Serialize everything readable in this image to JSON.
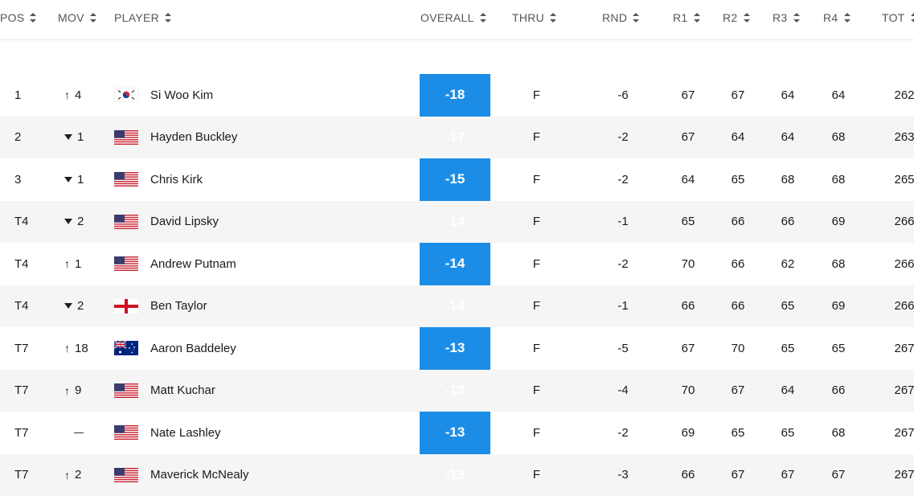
{
  "header": {
    "pos": "POS",
    "mov": "MOV",
    "player": "PLAYER",
    "overall": "OVERALL",
    "thru": "THRU",
    "rnd": "RND",
    "r1": "R1",
    "r2": "R2",
    "r3": "R3",
    "r4": "R4",
    "tot": "TOT"
  },
  "colors": {
    "overall_bg": "#1b8de6",
    "alt_row_bg": "#f5f5f5"
  },
  "rows": [
    {
      "pos": "1",
      "mov_dir": "up",
      "mov": "4",
      "flag": "korea-flag-icon",
      "player": "Si Woo Kim",
      "overall": "-18",
      "thru": "F",
      "rnd": "-6",
      "r1": "67",
      "r2": "67",
      "r3": "64",
      "r4": "64",
      "tot": "262"
    },
    {
      "pos": "2",
      "mov_dir": "down",
      "mov": "1",
      "flag": "usa-flag-icon",
      "player": "Hayden Buckley",
      "overall": "-17",
      "thru": "F",
      "rnd": "-2",
      "r1": "67",
      "r2": "64",
      "r3": "64",
      "r4": "68",
      "tot": "263"
    },
    {
      "pos": "3",
      "mov_dir": "down",
      "mov": "1",
      "flag": "usa-flag-icon",
      "player": "Chris Kirk",
      "overall": "-15",
      "thru": "F",
      "rnd": "-2",
      "r1": "64",
      "r2": "65",
      "r3": "68",
      "r4": "68",
      "tot": "265"
    },
    {
      "pos": "T4",
      "mov_dir": "down",
      "mov": "2",
      "flag": "usa-flag-icon",
      "player": "David Lipsky",
      "overall": "-14",
      "thru": "F",
      "rnd": "-1",
      "r1": "65",
      "r2": "66",
      "r3": "66",
      "r4": "69",
      "tot": "266"
    },
    {
      "pos": "T4",
      "mov_dir": "up",
      "mov": "1",
      "flag": "usa-flag-icon",
      "player": "Andrew Putnam",
      "overall": "-14",
      "thru": "F",
      "rnd": "-2",
      "r1": "70",
      "r2": "66",
      "r3": "62",
      "r4": "68",
      "tot": "266"
    },
    {
      "pos": "T4",
      "mov_dir": "down",
      "mov": "2",
      "flag": "england-flag-icon",
      "player": "Ben Taylor",
      "overall": "-14",
      "thru": "F",
      "rnd": "-1",
      "r1": "66",
      "r2": "66",
      "r3": "65",
      "r4": "69",
      "tot": "266"
    },
    {
      "pos": "T7",
      "mov_dir": "up",
      "mov": "18",
      "flag": "australia-flag-icon",
      "player": "Aaron Baddeley",
      "overall": "-13",
      "thru": "F",
      "rnd": "-5",
      "r1": "67",
      "r2": "70",
      "r3": "65",
      "r4": "65",
      "tot": "267"
    },
    {
      "pos": "T7",
      "mov_dir": "up",
      "mov": "9",
      "flag": "usa-flag-icon",
      "player": "Matt Kuchar",
      "overall": "-13",
      "thru": "F",
      "rnd": "-4",
      "r1": "70",
      "r2": "67",
      "r3": "64",
      "r4": "66",
      "tot": "267"
    },
    {
      "pos": "T7",
      "mov_dir": "none",
      "mov": "",
      "flag": "usa-flag-icon",
      "player": "Nate Lashley",
      "overall": "-13",
      "thru": "F",
      "rnd": "-2",
      "r1": "69",
      "r2": "65",
      "r3": "65",
      "r4": "68",
      "tot": "267"
    },
    {
      "pos": "T7",
      "mov_dir": "up",
      "mov": "2",
      "flag": "usa-flag-icon",
      "player": "Maverick McNealy",
      "overall": "-13",
      "thru": "F",
      "rnd": "-3",
      "r1": "66",
      "r2": "67",
      "r3": "67",
      "r4": "67",
      "tot": "267"
    }
  ]
}
